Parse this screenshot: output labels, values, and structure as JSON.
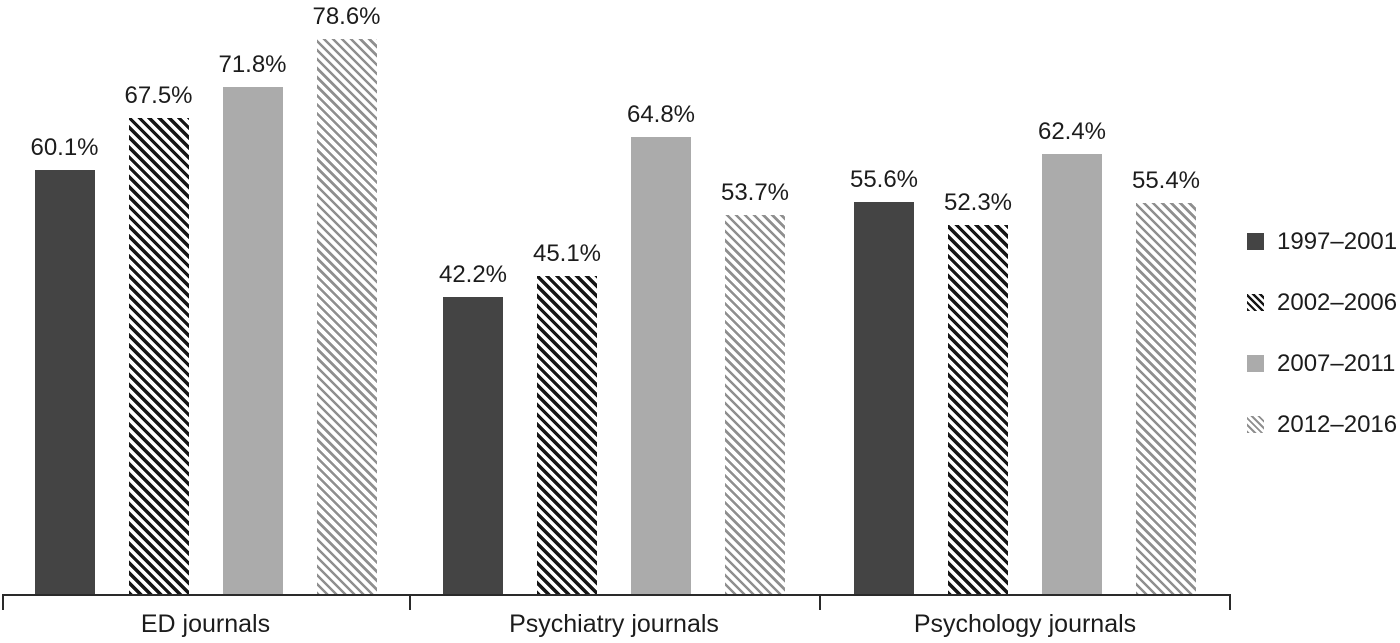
{
  "chart_data": {
    "type": "bar",
    "title": "",
    "unit": "%",
    "categories": [
      "ED journals",
      "Psychiatry journals",
      "Psychology journals"
    ],
    "series": [
      {
        "name": "1997–2001",
        "pattern": "solid-dark",
        "values": [
          60.1,
          42.2,
          55.6
        ]
      },
      {
        "name": "2002–2006",
        "pattern": "hatch-dark",
        "values": [
          67.5,
          45.1,
          52.3
        ]
      },
      {
        "name": "2007–2011",
        "pattern": "solid-light",
        "values": [
          71.8,
          64.8,
          62.4
        ]
      },
      {
        "name": "2012–2016",
        "pattern": "hatch-light",
        "values": [
          78.6,
          53.7,
          55.4
        ]
      }
    ],
    "value_labels": [
      [
        "60.1%",
        "67.5%",
        "71.8%",
        "78.6%"
      ],
      [
        "42.2%",
        "45.1%",
        "64.8%",
        "53.7%"
      ],
      [
        "55.6%",
        "52.3%",
        "62.4%",
        "55.4%"
      ]
    ],
    "legend": {
      "position": "right",
      "entries": [
        "1997–2001",
        "2002–2006",
        "2007–2011",
        "2012–2016"
      ]
    },
    "axes": {
      "y_axis_visible": false,
      "gridlines": false,
      "ylim": [
        0,
        84
      ],
      "x_group_separators": true
    },
    "colors": {
      "solid_dark": "#444444",
      "solid_light": "#ababab",
      "hatch_dark_stroke": "#161616",
      "hatch_light_stroke": "#8f8f8f",
      "axis": "#2a2a2a",
      "text": "#1c1c1c"
    }
  }
}
